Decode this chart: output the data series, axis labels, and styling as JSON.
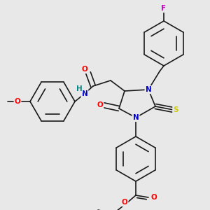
{
  "bg_color": "#e8e8e8",
  "bond_color": "#1a1a1a",
  "bond_lw": 1.2,
  "atom_colors": {
    "O": "#ff0000",
    "N": "#0000cc",
    "S": "#cccc00",
    "F": "#cc00cc",
    "H": "#008888",
    "C": "#1a1a1a"
  },
  "font_size": 7.5
}
